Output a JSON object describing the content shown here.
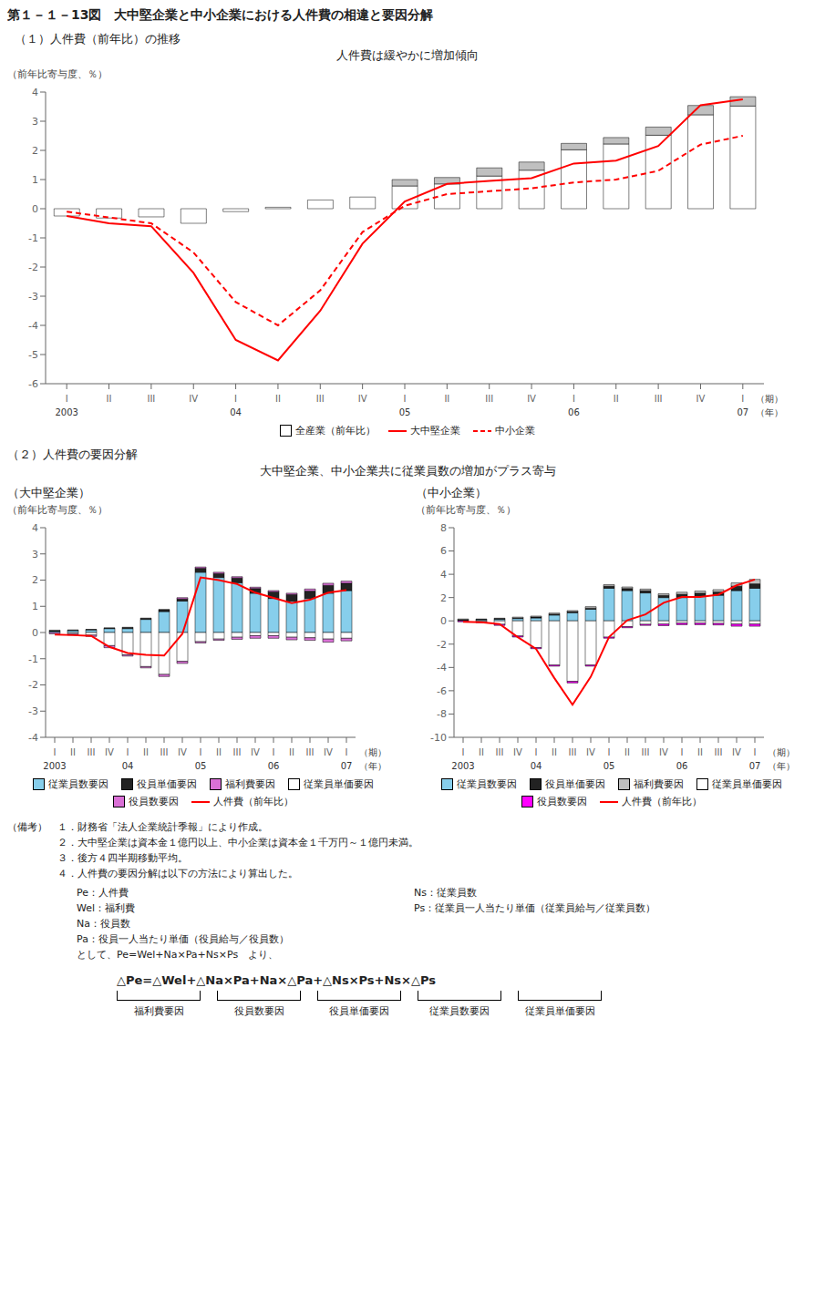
{
  "title": "第１－１－13図　大中堅企業と中小企業における人件費の相違と要因分解",
  "sections": [
    {
      "title": "（１）人件費（前年比）の推移",
      "subtitle": "人件費は緩やかに増加傾向"
    },
    {
      "title": "（２）人件費の要因分解",
      "subtitle": "大中堅企業、中小企業共に従業員数の増加がプラス寄与"
    }
  ],
  "chart_data": [
    {
      "type": "bar",
      "stacked": true,
      "grid": false,
      "ylabel": "（前年比寄与度、％）",
      "categories": [
        "I",
        "II",
        "III",
        "IV",
        "I",
        "II",
        "III",
        "IV",
        "I",
        "II",
        "III",
        "IV",
        "I",
        "II",
        "III",
        "IV",
        "I"
      ],
      "year_labels": [
        "2003",
        null,
        null,
        null,
        "04",
        null,
        null,
        null,
        "05",
        null,
        null,
        null,
        "06",
        null,
        null,
        null,
        "07"
      ],
      "x_unit": "（期）",
      "year_unit": "（年）",
      "ylim": [
        -6,
        4
      ],
      "yticks": [
        -6,
        -5,
        -4,
        -3,
        -2,
        -1,
        0,
        1,
        2,
        3,
        4
      ],
      "series": [
        {
          "name": "全産業（前年比）",
          "type": "bar",
          "color": "#FFFFFF",
          "values": [
            -0.25,
            -0.32,
            -0.28,
            -0.5,
            -0.1,
            0.05,
            0.3,
            0.4,
            0.78,
            0.85,
            1.12,
            1.32,
            2.02,
            2.22,
            2.52,
            3.22,
            3.52
          ]
        },
        {
          "type": "bar",
          "color": "#C0C0C0",
          "values": [
            0.0,
            0.0,
            0.0,
            0.0,
            0.0,
            0.0,
            0.0,
            0.0,
            0.22,
            0.22,
            0.28,
            0.28,
            0.22,
            0.22,
            0.28,
            0.32,
            0.32
          ]
        },
        {
          "name": "大中堅企業",
          "type": "line",
          "color": "#FF0000",
          "line_style": "solid",
          "values": [
            -0.25,
            -0.5,
            -0.6,
            -2.2,
            -4.5,
            -5.2,
            -3.5,
            -1.2,
            0.25,
            0.85,
            0.95,
            1.05,
            1.55,
            1.65,
            2.15,
            3.55,
            3.75
          ]
        },
        {
          "name": "中小企業",
          "type": "line",
          "color": "#FF0000",
          "line_style": "dashed",
          "values": [
            -0.1,
            -0.3,
            -0.5,
            -1.5,
            -3.2,
            -4.0,
            -2.8,
            -0.8,
            0.1,
            0.5,
            0.6,
            0.7,
            0.9,
            1.0,
            1.3,
            2.2,
            2.5
          ]
        }
      ]
    },
    {
      "type": "bar",
      "stacked": true,
      "grid": false,
      "title": "（大中堅企業）",
      "ylabel": "（前年比寄与度、％）",
      "categories": [
        "I",
        "II",
        "III",
        "IV",
        "I",
        "II",
        "III",
        "IV",
        "I",
        "II",
        "III",
        "IV",
        "I",
        "II",
        "III",
        "IV",
        "I"
      ],
      "year_labels": [
        "2003",
        null,
        null,
        null,
        "04",
        null,
        null,
        null,
        "05",
        null,
        null,
        null,
        "06",
        null,
        null,
        null,
        "07"
      ],
      "x_unit": "（期）",
      "year_unit": "（年）",
      "ylim": [
        -4,
        4
      ],
      "yticks": [
        -4,
        -3,
        -2,
        -1,
        0,
        1,
        2,
        3,
        4
      ],
      "series": [
        {
          "name": "従業員数要因",
          "type": "bar",
          "color": "#87CEEB",
          "values": [
            0.05,
            0.08,
            0.1,
            0.15,
            0.15,
            0.5,
            0.8,
            1.2,
            2.3,
            2.1,
            1.9,
            1.5,
            1.3,
            1.2,
            1.3,
            1.5,
            1.6
          ]
        },
        {
          "name": "役員単価要因",
          "type": "bar",
          "color": "#222222",
          "values": [
            0.02,
            0.02,
            0.02,
            0.03,
            0.05,
            0.05,
            0.08,
            0.08,
            0.15,
            0.15,
            0.18,
            0.18,
            0.25,
            0.25,
            0.28,
            0.3,
            0.28
          ]
        },
        {
          "name": "福利費要因",
          "type": "bar",
          "color": "#DA70D6",
          "values": [
            0.0,
            0.0,
            0.0,
            0.0,
            0.0,
            0.0,
            0.0,
            0.05,
            0.05,
            0.05,
            0.05,
            0.05,
            0.05,
            0.05,
            0.08,
            0.08,
            0.08
          ]
        },
        {
          "name": "従業員単価要因",
          "type": "bar",
          "color": "#FFFFFF",
          "values": [
            0.02,
            -0.05,
            -0.1,
            -0.5,
            -0.85,
            -1.3,
            -1.6,
            -1.1,
            -0.35,
            -0.25,
            -0.18,
            -0.12,
            -0.12,
            -0.18,
            -0.2,
            -0.25,
            -0.22
          ]
        },
        {
          "name": "役員数要因",
          "type": "bar",
          "color": "#DA70D6",
          "values": [
            -0.05,
            -0.05,
            -0.05,
            -0.08,
            -0.05,
            -0.05,
            -0.08,
            -0.08,
            -0.05,
            -0.05,
            -0.08,
            -0.1,
            -0.1,
            -0.1,
            -0.1,
            -0.12,
            -0.1
          ]
        },
        {
          "name": "人件費（前年比）",
          "type": "line",
          "color": "#FF0000",
          "line_style": "solid",
          "values": [
            -0.08,
            -0.1,
            -0.13,
            -0.55,
            -0.78,
            -0.85,
            -0.88,
            -0.05,
            2.1,
            2.0,
            1.85,
            1.52,
            1.32,
            1.12,
            1.25,
            1.52,
            1.62
          ]
        }
      ]
    },
    {
      "type": "bar",
      "stacked": true,
      "grid": false,
      "title": "（中小企業）",
      "ylabel": "（前年比寄与度、％）",
      "categories": [
        "I",
        "II",
        "III",
        "IV",
        "I",
        "II",
        "III",
        "IV",
        "I",
        "II",
        "III",
        "IV",
        "I",
        "II",
        "III",
        "IV",
        "I"
      ],
      "year_labels": [
        "2003",
        null,
        null,
        null,
        "04",
        null,
        null,
        null,
        "05",
        null,
        null,
        null,
        "06",
        null,
        null,
        null,
        "07"
      ],
      "x_unit": "（期）",
      "year_unit": "（年）",
      "ylim": [
        -10,
        8
      ],
      "yticks": [
        -10,
        -8,
        -6,
        -4,
        -2,
        0,
        2,
        4,
        6,
        8
      ],
      "series": [
        {
          "name": "従業員数要因",
          "type": "bar",
          "color": "#87CEEB",
          "values": [
            0.05,
            0.1,
            0.15,
            0.2,
            0.25,
            0.5,
            0.7,
            1.0,
            2.8,
            2.6,
            2.4,
            2.0,
            2.0,
            2.1,
            2.2,
            2.6,
            2.8
          ]
        },
        {
          "name": "役員単価要因",
          "type": "bar",
          "color": "#222222",
          "values": [
            0.03,
            0.03,
            0.04,
            0.04,
            0.08,
            0.08,
            0.09,
            0.09,
            0.18,
            0.18,
            0.19,
            0.19,
            0.28,
            0.28,
            0.29,
            0.38,
            0.38
          ]
        },
        {
          "name": "福利費要因",
          "type": "bar",
          "color": "#C0C0C0",
          "values": [
            0.03,
            0.03,
            0.04,
            0.08,
            0.08,
            0.09,
            0.09,
            0.13,
            0.13,
            0.13,
            0.14,
            0.14,
            0.18,
            0.18,
            0.19,
            0.28,
            0.38
          ]
        },
        {
          "name": "従業員単価要因",
          "type": "bar",
          "color": "#FFFFFF",
          "values": [
            0.05,
            -0.08,
            -0.3,
            -1.3,
            -2.3,
            -3.8,
            -5.2,
            -3.8,
            -1.4,
            -0.5,
            -0.3,
            -0.28,
            -0.2,
            -0.2,
            -0.22,
            -0.28,
            -0.28
          ]
        },
        {
          "name": "役員数要因",
          "type": "bar",
          "color": "#FF00FF",
          "values": [
            -0.08,
            -0.08,
            -0.09,
            -0.09,
            -0.09,
            -0.09,
            -0.13,
            -0.09,
            -0.09,
            -0.09,
            -0.09,
            -0.13,
            -0.13,
            -0.13,
            -0.13,
            -0.18,
            -0.18
          ]
        },
        {
          "name": "人件費（前年比）",
          "type": "line",
          "color": "#FF0000",
          "line_style": "solid",
          "values": [
            -0.08,
            -0.12,
            -0.28,
            -1.4,
            -2.4,
            -4.9,
            -7.2,
            -4.8,
            -1.4,
            0.05,
            0.55,
            1.55,
            2.05,
            2.05,
            2.25,
            3.05,
            3.55
          ]
        }
      ]
    }
  ],
  "notes": [
    "（備考）　１．財務省「法人企業統計季報」により作成。",
    "　　　　　２．大中堅企業は資本金１億円以上、中小企業は資本金１千万円～１億円未満。",
    "　　　　　３．後方４四半期移動平均。",
    "　　　　　４．人件費の要因分解は以下の方法により算出した。"
  ],
  "variables_left": [
    "Pe：人件費",
    "Wel：福利費",
    "Na：役員数",
    "Pa：役員一人当たり単価（役員給与／役員数）",
    "として、Pe=Wel+Na×Pa+Ns×Ps　より、"
  ],
  "variables_right": [
    "Ns：従業員数",
    "Ps：従業員一人当たり単価（従業員給与／従業員数）"
  ],
  "formula": "△Pe=△Wel+△Na×Pa+Na×△Pa+△Ns×Ps+Ns×△Ps",
  "formula_labels": [
    "福利費要因",
    "役員数要因",
    "役員単価要因",
    "従業員数要因",
    "従業員単価要因"
  ]
}
